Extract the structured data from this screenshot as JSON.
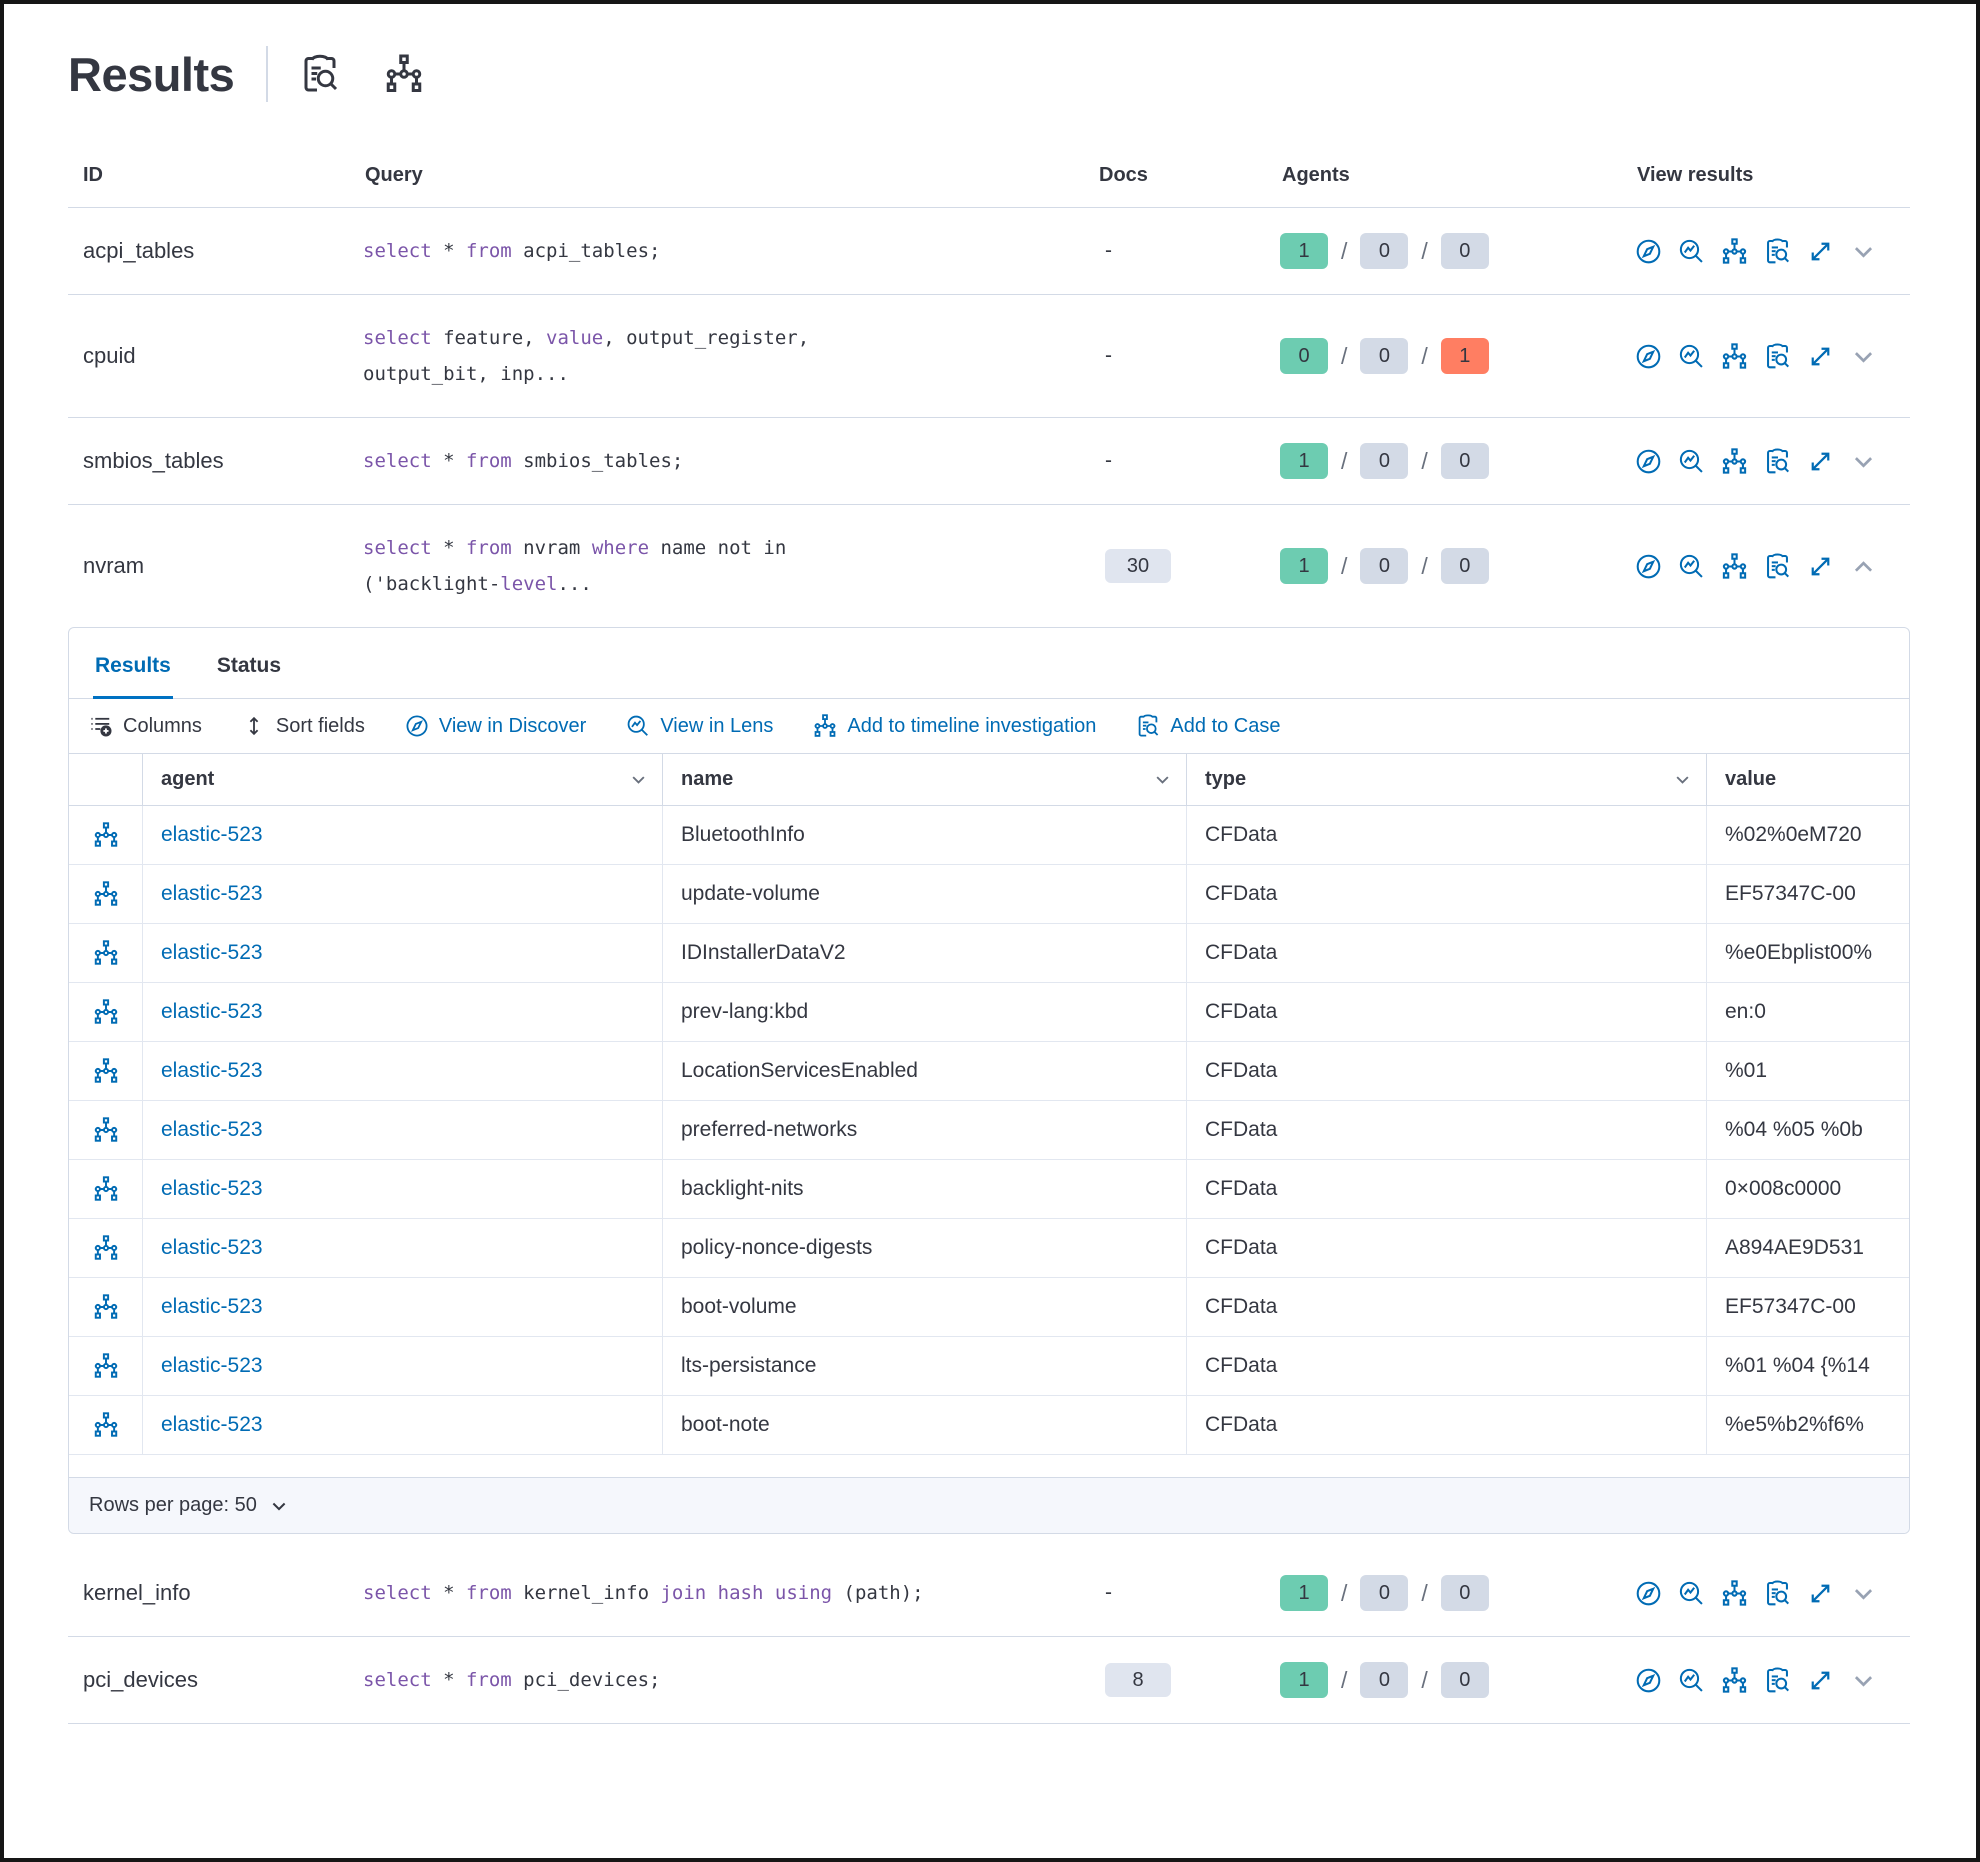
{
  "header": {
    "title": "Results",
    "icons": [
      "inspect-icon",
      "timeline-tree-icon"
    ]
  },
  "results_table": {
    "columns": {
      "id": "ID",
      "query": "Query",
      "docs": "Docs",
      "agents": "Agents",
      "view_results": "View results"
    },
    "view_results_actions": [
      "view-in-discover",
      "view-in-lens",
      "add-to-timeline",
      "add-to-case",
      "expand",
      "toggle-details"
    ],
    "rows": [
      {
        "id": "acpi_tables",
        "docs": "-",
        "query": [
          {
            "t": "select",
            "k": 1
          },
          {
            "t": " * ",
            "k": 0
          },
          {
            "t": "from",
            "k": 1
          },
          {
            "t": " acpi_tables;",
            "k": 0
          }
        ],
        "agents": [
          {
            "v": "1",
            "c": "green"
          },
          {
            "v": "0",
            "c": "gray"
          },
          {
            "v": "0",
            "c": "gray"
          }
        ]
      },
      {
        "id": "cpuid",
        "docs": "-",
        "query": [
          {
            "t": "select",
            "k": 1
          },
          {
            "t": " feature, ",
            "k": 0
          },
          {
            "t": "value",
            "k": 1
          },
          {
            "t": ", output_register,",
            "k": 0
          },
          {
            "br": 1
          },
          {
            "t": "output_bit, inp...",
            "k": 0
          }
        ],
        "agents": [
          {
            "v": "0",
            "c": "green"
          },
          {
            "v": "0",
            "c": "gray"
          },
          {
            "v": "1",
            "c": "red"
          }
        ]
      },
      {
        "id": "smbios_tables",
        "docs": "-",
        "query": [
          {
            "t": "select",
            "k": 1
          },
          {
            "t": " * ",
            "k": 0
          },
          {
            "t": "from",
            "k": 1
          },
          {
            "t": " smbios_tables;",
            "k": 0
          }
        ],
        "agents": [
          {
            "v": "1",
            "c": "green"
          },
          {
            "v": "0",
            "c": "gray"
          },
          {
            "v": "0",
            "c": "gray"
          }
        ]
      },
      {
        "id": "nvram",
        "docs": "30",
        "query": [
          {
            "t": "select",
            "k": 1
          },
          {
            "t": " * ",
            "k": 0
          },
          {
            "t": "from",
            "k": 1
          },
          {
            "t": " nvram ",
            "k": 0
          },
          {
            "t": "where",
            "k": 1
          },
          {
            "t": " name not in",
            "k": 0
          },
          {
            "br": 1
          },
          {
            "t": "('backlight-",
            "k": 0
          },
          {
            "t": "level",
            "k": 1
          },
          {
            "t": "...",
            "k": 0
          }
        ],
        "agents": [
          {
            "v": "1",
            "c": "green"
          },
          {
            "v": "0",
            "c": "gray"
          },
          {
            "v": "0",
            "c": "gray"
          }
        ]
      },
      {
        "id": "kernel_info",
        "docs": "-",
        "query": [
          {
            "t": "select",
            "k": 1
          },
          {
            "t": " * ",
            "k": 0
          },
          {
            "t": "from",
            "k": 1
          },
          {
            "t": " kernel_info ",
            "k": 0
          },
          {
            "t": "join",
            "k": 1
          },
          {
            "t": " ",
            "k": 0
          },
          {
            "t": "hash",
            "k": 1
          },
          {
            "t": " ",
            "k": 0
          },
          {
            "t": "using",
            "k": 1
          },
          {
            "t": " (path);",
            "k": 0
          }
        ],
        "agents": [
          {
            "v": "1",
            "c": "green"
          },
          {
            "v": "0",
            "c": "gray"
          },
          {
            "v": "0",
            "c": "gray"
          }
        ]
      },
      {
        "id": "pci_devices",
        "docs": "8",
        "query": [
          {
            "t": "select",
            "k": 1
          },
          {
            "t": " * ",
            "k": 0
          },
          {
            "t": "from",
            "k": 1
          },
          {
            "t": " pci_devices;",
            "k": 0
          }
        ],
        "agents": [
          {
            "v": "1",
            "c": "green"
          },
          {
            "v": "0",
            "c": "gray"
          },
          {
            "v": "0",
            "c": "gray"
          }
        ]
      }
    ]
  },
  "expanded": {
    "tabs": [
      {
        "label": "Results"
      },
      {
        "label": "Status"
      }
    ],
    "active_tab": "Results",
    "toolbar": [
      {
        "label": "Columns",
        "icon": "columns-icon"
      },
      {
        "label": "Sort fields",
        "icon": "sort-icon"
      },
      {
        "label": "View in Discover",
        "icon": "discover-icon"
      },
      {
        "label": "View in Lens",
        "icon": "lens-icon"
      },
      {
        "label": "Add to timeline investigation",
        "icon": "timeline-tree-icon"
      },
      {
        "label": "Add to Case",
        "icon": "case-icon"
      }
    ],
    "grid": {
      "columns": {
        "agent": "agent",
        "name": "name",
        "type": "type",
        "value": "value"
      },
      "rows": [
        {
          "agent": "elastic-523",
          "name": "BluetoothInfo",
          "type": "CFData",
          "value": "%02%0eM720"
        },
        {
          "agent": "elastic-523",
          "name": "update-volume",
          "type": "CFData",
          "value": "EF57347C-00"
        },
        {
          "agent": "elastic-523",
          "name": "IDInstallerDataV2",
          "type": "CFData",
          "value": "%e0Ebplist00%"
        },
        {
          "agent": "elastic-523",
          "name": "prev-lang:kbd",
          "type": "CFData",
          "value": "en:0"
        },
        {
          "agent": "elastic-523",
          "name": "LocationServicesEnabled",
          "type": "CFData",
          "value": "%01"
        },
        {
          "agent": "elastic-523",
          "name": "preferred-networks",
          "type": "CFData",
          "value": "%04 %05 %0b"
        },
        {
          "agent": "elastic-523",
          "name": "backlight-nits",
          "type": "CFData",
          "value": "0×008c0000"
        },
        {
          "agent": "elastic-523",
          "name": "policy-nonce-digests",
          "type": "CFData",
          "value": "A894AE9D531"
        },
        {
          "agent": "elastic-523",
          "name": "boot-volume",
          "type": "CFData",
          "value": "EF57347C-00"
        },
        {
          "agent": "elastic-523",
          "name": "lts-persistance",
          "type": "CFData",
          "value": "%01 %04 {%14"
        },
        {
          "agent": "elastic-523",
          "name": "boot-note",
          "type": "CFData",
          "value": "%e5%b2%f6%"
        }
      ],
      "pagination": "Rows per page: 50"
    }
  },
  "colors": {
    "primary_blue": "#006BB4",
    "tab_underline": "#0071C2",
    "keyword_purple": "#7B55A9",
    "badge_green": "#6DCCB1",
    "badge_gray": "#D3DAE6",
    "badge_red": "#FF7E62",
    "docs_badge": "#E0E5EF",
    "border": "#D3DAE6",
    "text": "#343741"
  }
}
